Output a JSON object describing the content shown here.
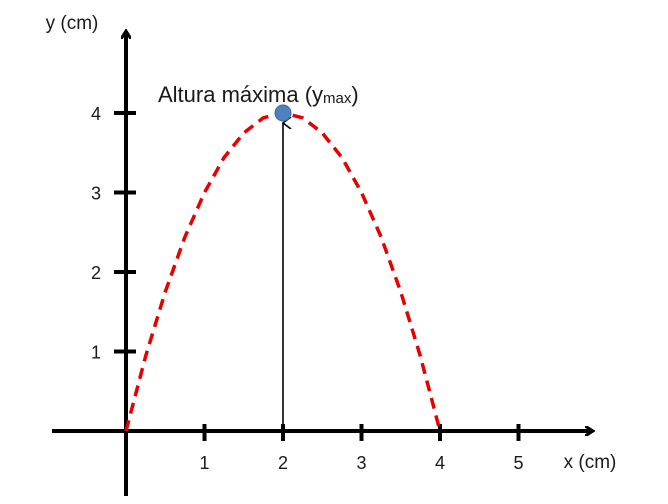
{
  "chart_data": {
    "type": "line",
    "title": "",
    "xlabel": "x (cm)",
    "ylabel": "y (cm)",
    "xlim": [
      0,
      5.7
    ],
    "ylim": [
      0,
      5.1
    ],
    "x_ticks": [
      1,
      2,
      3,
      4,
      5
    ],
    "y_ticks": [
      1,
      2,
      3,
      4
    ],
    "x_tick_labels": [
      "1",
      "2",
      "3",
      "4",
      "5"
    ],
    "y_tick_labels": [
      "1",
      "2",
      "3",
      "4"
    ],
    "grid": false,
    "legend": "none",
    "series": [
      {
        "x": [
          0,
          0.25,
          0.5,
          0.75,
          1,
          1.25,
          1.5,
          1.75,
          2,
          2.25,
          2.5,
          2.75,
          3,
          3.25,
          3.5,
          3.75,
          4
        ],
        "y": [
          0,
          0.94,
          1.75,
          2.44,
          3,
          3.44,
          3.75,
          3.94,
          4,
          3.94,
          3.75,
          3.44,
          3,
          2.44,
          1.75,
          0.94,
          0
        ],
        "style": "dashed",
        "color": "#e60000"
      }
    ],
    "highlight_point": {
      "x": 2,
      "y": 4,
      "color": "#4f81bd"
    },
    "annotation": {
      "text_main": "Altura máxima (y",
      "text_sub": "max",
      "text_close": ")"
    },
    "colors": {
      "axis": "#000000",
      "curve": "#e60000",
      "point": "#4f81bd",
      "point_stroke": "#3a6aa0"
    }
  }
}
